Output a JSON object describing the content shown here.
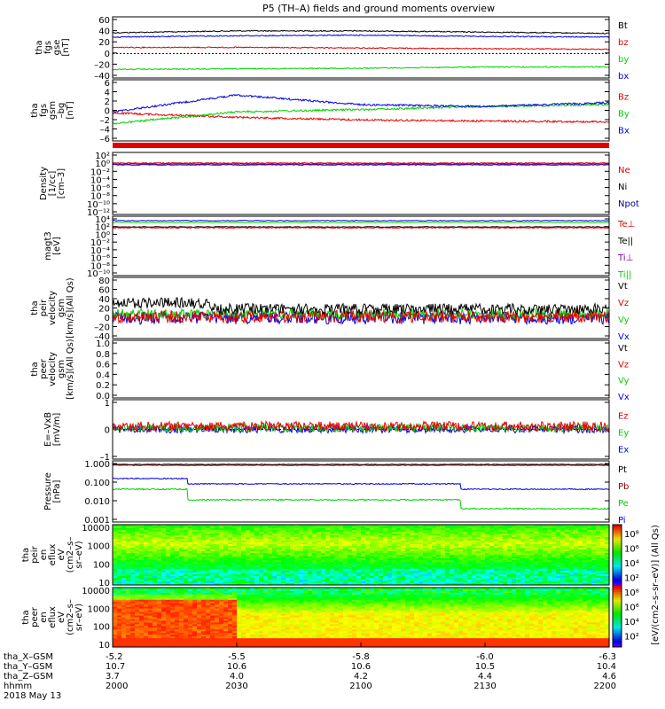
{
  "title": "P5 (TH–A) fields and ground moments overview",
  "colors": {
    "black": "#000000",
    "red": "#e00000",
    "green": "#00d000",
    "blue": "#0000e0",
    "purple": "#8000a0",
    "darkred": "#800000",
    "navy": "#000090"
  },
  "x_axis": {
    "ticks": [
      {
        "hhmm": "2000",
        "x_gsm": "-5.2",
        "y_gsm": "10.7",
        "z_gsm": "3.7"
      },
      {
        "hhmm": "2030",
        "x_gsm": "-5.5",
        "y_gsm": "10.6",
        "z_gsm": "4.0"
      },
      {
        "hhmm": "2100",
        "x_gsm": "-5.8",
        "y_gsm": "10.6",
        "z_gsm": "4.2"
      },
      {
        "hhmm": "2130",
        "x_gsm": "-6.0",
        "y_gsm": "10.5",
        "z_gsm": "4.4"
      },
      {
        "hhmm": "2200",
        "x_gsm": "-6.3",
        "y_gsm": "10.4",
        "z_gsm": "4.6"
      }
    ],
    "row_labels": [
      "tha_X–GSM",
      "tha_Y–GSM",
      "tha_Z–GSM",
      "hhmm"
    ],
    "date": "2018 May 13"
  },
  "colorbar": {
    "label": "[eV/(cm2–s–sr–eV)] (All Qs)",
    "ticks": [
      "10⁸",
      "10⁶",
      "10⁴",
      "10²",
      "10⁸",
      "10⁶",
      "10⁴",
      "10²"
    ]
  },
  "chart_data": [
    {
      "type": "line",
      "panel": "fgs",
      "ylabel": [
        "tha",
        "fgs",
        "gse",
        "[nT]"
      ],
      "ylim": [
        -40,
        60
      ],
      "yticks": [
        "60",
        "40",
        "20",
        "0",
        "–20",
        "–40"
      ],
      "x": [
        "2000",
        "2030",
        "2100",
        "2130",
        "2200"
      ],
      "series": [
        {
          "name": "Bt",
          "color": "black",
          "values": [
            34,
            37,
            37,
            35,
            33
          ]
        },
        {
          "name": "bz",
          "color": "red",
          "values": [
            10,
            10,
            9,
            8,
            7
          ]
        },
        {
          "name": "by",
          "color": "green",
          "values": [
            -26,
            -25,
            -24,
            -22,
            -22
          ]
        },
        {
          "name": "bx",
          "color": "blue",
          "values": [
            27,
            29,
            30,
            28,
            27
          ]
        }
      ]
    },
    {
      "type": "line",
      "panel": "fgs_gsm",
      "ylabel": [
        "tha",
        "fgs",
        "gsm",
        "–bg",
        "[nT]"
      ],
      "ylim": [
        -7,
        9
      ],
      "yticks": [
        "6",
        "4",
        "2",
        "0",
        "–2",
        "–4",
        "–6"
      ],
      "x": [
        "2000",
        "2030",
        "2100",
        "2130",
        "2200"
      ],
      "series": [
        {
          "name": "Bz",
          "color": "red",
          "values": [
            0.3,
            -0.8,
            -1.5,
            -1.8,
            -2.0
          ]
        },
        {
          "name": "By",
          "color": "green",
          "values": [
            -2.5,
            0.6,
            1.2,
            2.0,
            2.5
          ]
        },
        {
          "name": "Bx",
          "color": "blue",
          "values": [
            0.6,
            5.0,
            2.5,
            2.0,
            3.0
          ]
        }
      ]
    },
    {
      "type": "line",
      "panel": "density",
      "ylabel": [
        "Density",
        "[1/cc]",
        "[cm–3]"
      ],
      "yticks": [
        "10²",
        "10⁰",
        "10⁻²",
        "10⁻⁴",
        "10⁻⁶",
        "10⁻⁸",
        "10⁻¹⁰",
        "10⁻¹²"
      ],
      "series": [
        {
          "name": "Ne",
          "color": "red"
        },
        {
          "name": "Ni",
          "color": "black"
        },
        {
          "name": "Npot",
          "color": "navy"
        }
      ]
    },
    {
      "type": "line",
      "panel": "temp",
      "ylabel": [
        "magt3",
        "[eV]"
      ],
      "yticks": [
        "10⁴",
        "10²",
        "10⁰",
        "10⁻²",
        "10⁻⁴",
        "10⁻⁶",
        "10⁻⁸",
        "10⁻¹⁰"
      ],
      "series": [
        {
          "name": "Te⊥",
          "color": "red"
        },
        {
          "name": "Te||",
          "color": "black"
        },
        {
          "name": "Ti⊥",
          "color": "purple"
        },
        {
          "name": "Ti||",
          "color": "green"
        }
      ]
    },
    {
      "type": "line",
      "panel": "peir_v",
      "ylabel": [
        "tha",
        "peir",
        "velocity",
        "gsm",
        "[km/s](All Qs)"
      ],
      "ylim": [
        -40,
        80
      ],
      "yticks": [
        "80",
        "60",
        "40",
        "20",
        "0",
        "–20",
        "–40"
      ],
      "series": [
        {
          "name": "Vt",
          "color": "black"
        },
        {
          "name": "Vz",
          "color": "red"
        },
        {
          "name": "Vy",
          "color": "green"
        },
        {
          "name": "Vx",
          "color": "blue"
        }
      ]
    },
    {
      "type": "line",
      "panel": "peer_v",
      "ylabel": [
        "tha",
        "peer",
        "velocity",
        "gsm",
        "[km/s](All Qs)"
      ],
      "ylim": [
        0,
        1
      ],
      "yticks": [
        "1.0",
        "0.8",
        "0.6",
        "0.4",
        "0.2",
        "0.0"
      ],
      "series": [
        {
          "name": "Vt",
          "color": "black"
        },
        {
          "name": "Vz",
          "color": "red"
        },
        {
          "name": "Vy",
          "color": "green"
        },
        {
          "name": "Vx",
          "color": "blue"
        }
      ]
    },
    {
      "type": "line",
      "panel": "efield",
      "ylabel": [
        "E=–VxB",
        "[mV/m]"
      ],
      "ylim": [
        -2,
        2
      ],
      "yticks": [
        "1",
        "0",
        "–1"
      ],
      "series": [
        {
          "name": "Ez",
          "color": "red"
        },
        {
          "name": "Ey",
          "color": "green"
        },
        {
          "name": "Ex",
          "color": "blue"
        }
      ]
    },
    {
      "type": "line",
      "panel": "pressure",
      "ylabel": [
        "Pressure",
        "[nPa]"
      ],
      "yticks": [
        "1.000",
        "0.100",
        "0.010",
        "0.001"
      ],
      "series": [
        {
          "name": "Pt",
          "color": "black"
        },
        {
          "name": "Pb",
          "color": "darkred"
        },
        {
          "name": "Pe",
          "color": "green"
        },
        {
          "name": "Pi",
          "color": "blue"
        }
      ]
    },
    {
      "type": "heatmap",
      "panel": "peir_en",
      "ylabel": [
        "tha",
        "peir",
        "en",
        "eflux",
        "eV",
        "(cm2–s–",
        "sr–eV)"
      ],
      "yticks": [
        "10000",
        "1000",
        "100",
        "10"
      ]
    },
    {
      "type": "heatmap",
      "panel": "peer_en",
      "ylabel": [
        "tha",
        "peer",
        "en",
        "eflux",
        "eV",
        "(cm2–s–",
        "sr–eV)"
      ],
      "yticks": [
        "10000",
        "1000",
        "100",
        "10"
      ]
    }
  ]
}
